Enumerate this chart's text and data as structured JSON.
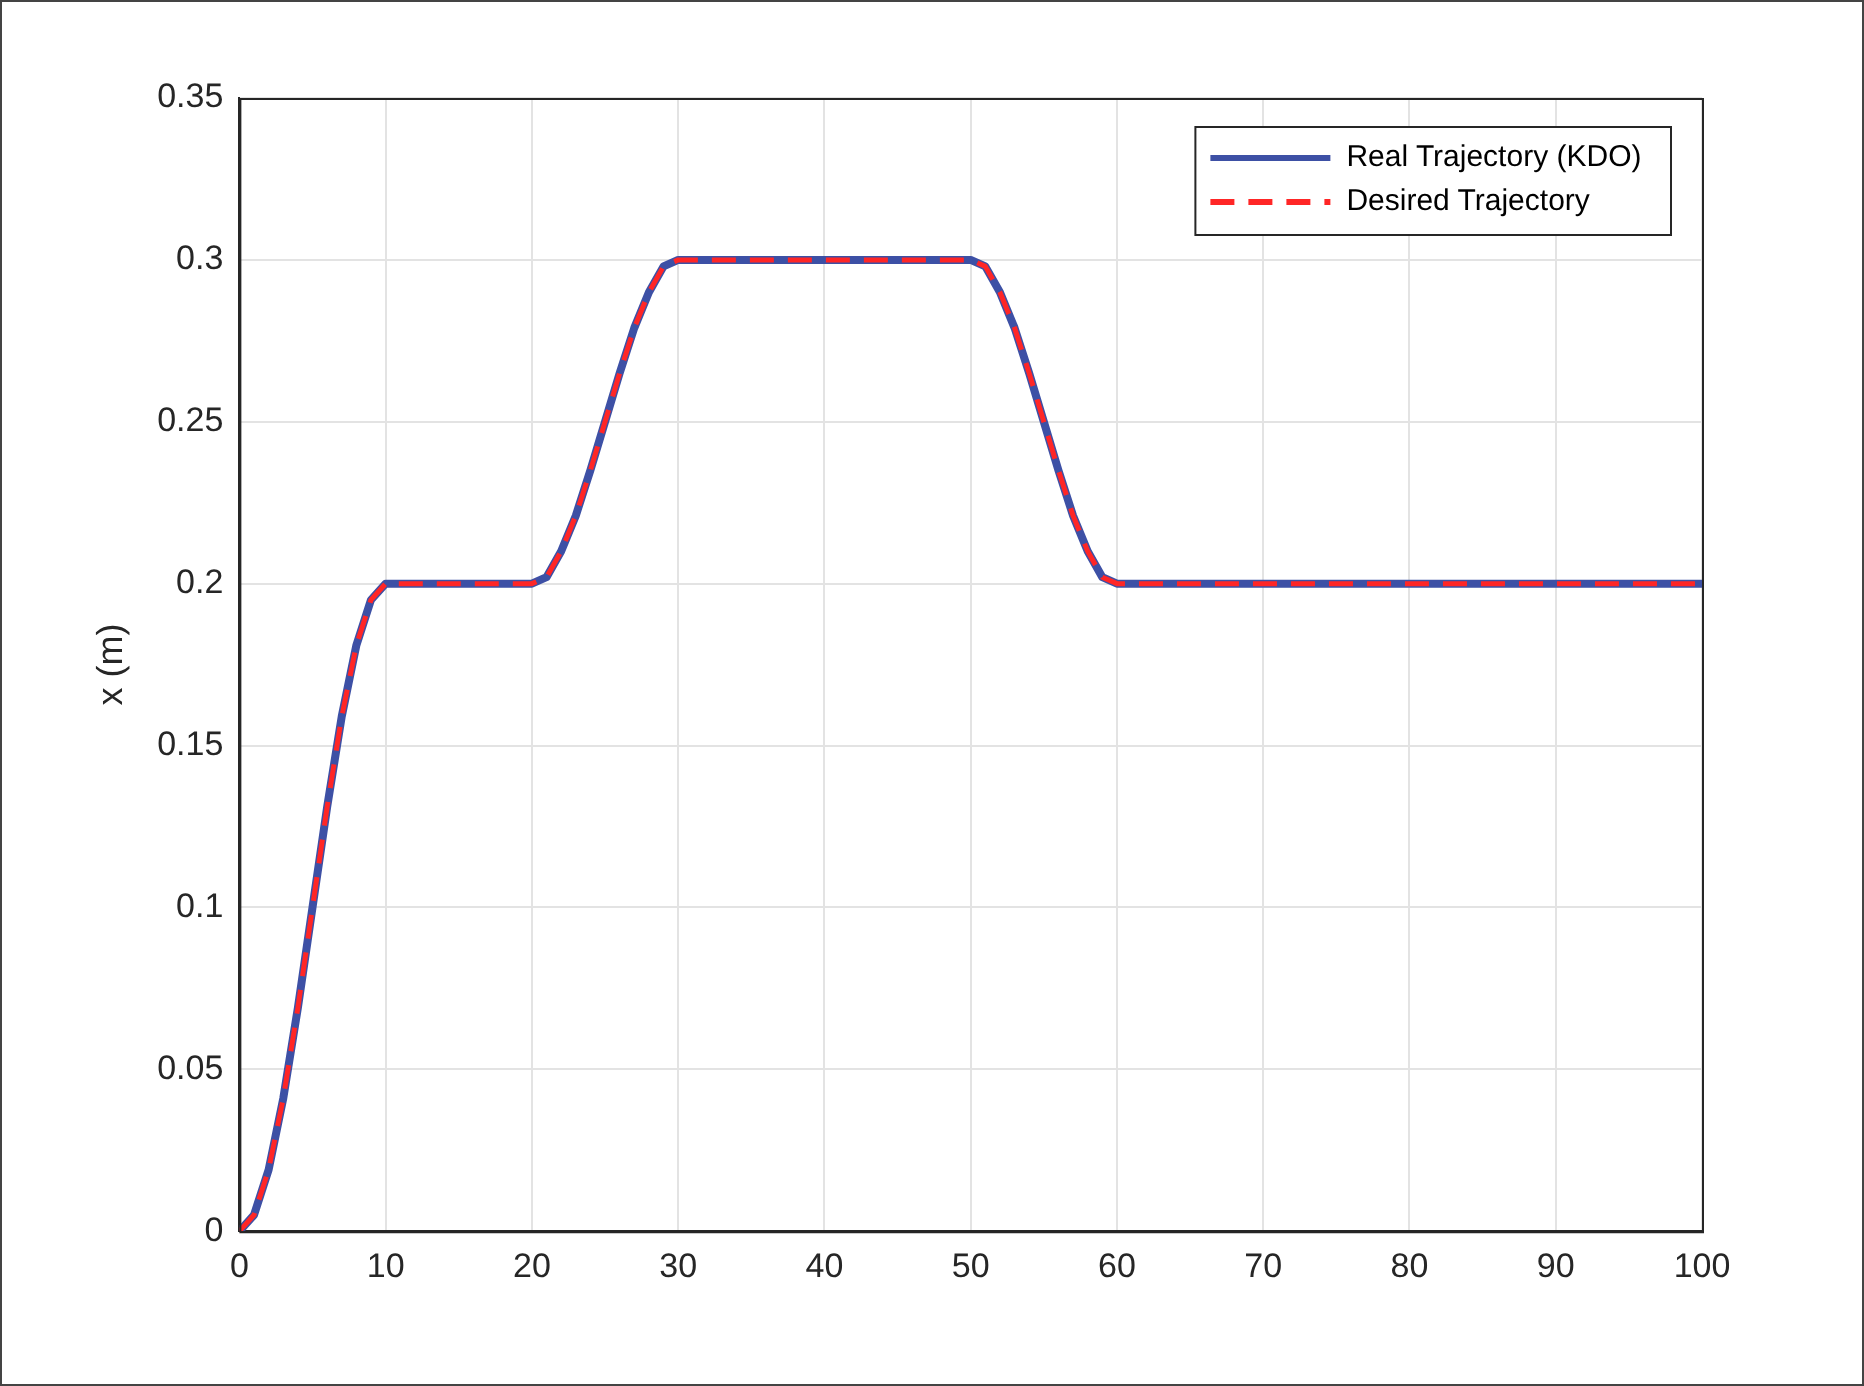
{
  "chart_data": {
    "type": "line",
    "ylabel": "x (m)",
    "x": [
      0,
      1,
      2,
      3,
      4,
      5,
      6,
      7,
      8,
      9,
      10,
      20,
      21,
      22,
      23,
      24,
      25,
      26,
      27,
      28,
      29,
      30,
      50,
      51,
      52,
      53,
      54,
      55,
      56,
      57,
      58,
      59,
      60,
      100
    ],
    "series": [
      {
        "name": "Real Trajectory (KDO)",
        "color": "#3d50a5",
        "line_style": "solid",
        "values": [
          0,
          0.005,
          0.019,
          0.041,
          0.069,
          0.1,
          0.131,
          0.159,
          0.181,
          0.195,
          0.2,
          0.2,
          0.202,
          0.21,
          0.221,
          0.235,
          0.25,
          0.265,
          0.279,
          0.29,
          0.298,
          0.3,
          0.3,
          0.298,
          0.29,
          0.279,
          0.265,
          0.25,
          0.235,
          0.221,
          0.21,
          0.202,
          0.2,
          0.2
        ]
      },
      {
        "name": "Desired Trajectory",
        "color": "#ff2626",
        "line_style": "dashed",
        "values": [
          0,
          0.005,
          0.019,
          0.041,
          0.069,
          0.1,
          0.131,
          0.159,
          0.181,
          0.195,
          0.2,
          0.2,
          0.202,
          0.21,
          0.221,
          0.235,
          0.25,
          0.265,
          0.279,
          0.29,
          0.298,
          0.3,
          0.3,
          0.298,
          0.29,
          0.279,
          0.265,
          0.25,
          0.235,
          0.221,
          0.21,
          0.202,
          0.2,
          0.2
        ]
      }
    ],
    "xlim": [
      0,
      100
    ],
    "xticks": [
      0,
      10,
      20,
      30,
      40,
      50,
      60,
      70,
      80,
      90,
      100
    ],
    "ylim": [
      0,
      0.35
    ],
    "yticks": [
      0,
      0.05,
      0.1,
      0.15,
      0.2,
      0.25,
      0.3,
      0.35
    ],
    "grid": true,
    "legend": "top right",
    "marker": "none"
  }
}
